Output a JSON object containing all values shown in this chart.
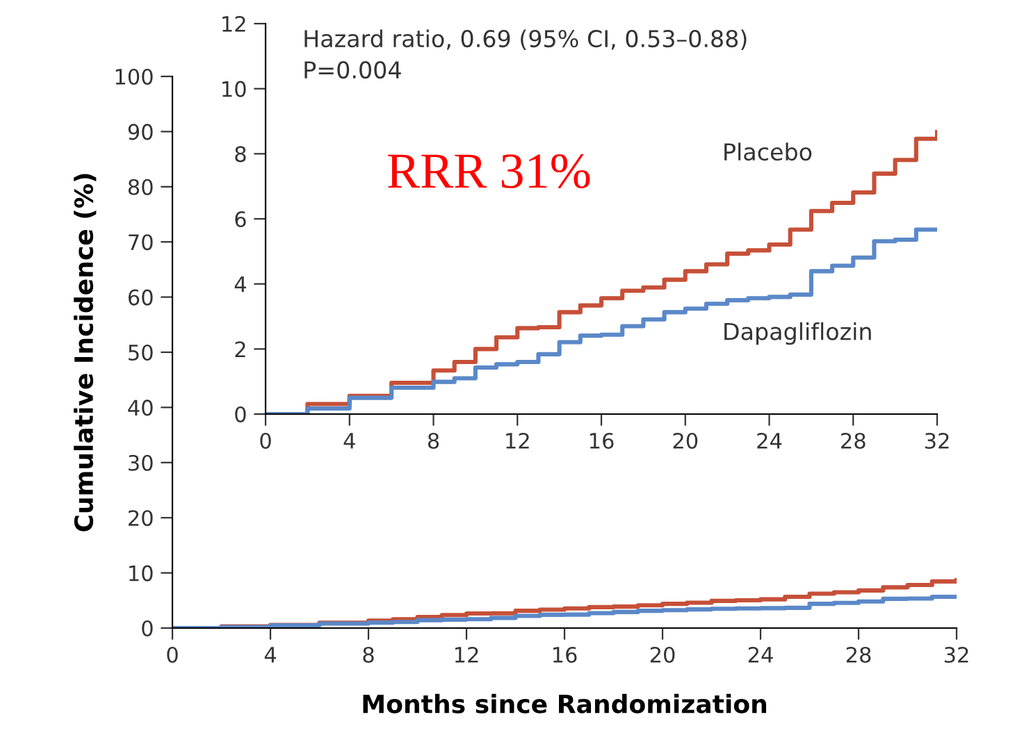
{
  "chart_data": [
    {
      "type": "step",
      "xlabel": "Months since Randomization",
      "ylabel": "Cumulative Incidence (%)",
      "xlim": [
        0,
        32
      ],
      "ylim": [
        0,
        100
      ],
      "xticks": [
        0,
        4,
        8,
        12,
        16,
        20,
        24,
        28,
        32
      ],
      "yticks": [
        0,
        10,
        20,
        30,
        40,
        50,
        60,
        70,
        80,
        90,
        100
      ],
      "grid": false,
      "legend": false,
      "x": [
        0,
        2,
        4,
        6,
        8,
        9,
        10,
        11,
        12,
        13,
        14,
        15,
        16,
        17,
        18,
        19,
        20,
        21,
        22,
        23,
        24,
        25,
        26,
        27,
        28,
        29,
        30,
        31,
        32
      ],
      "series": [
        {
          "color": "#c65038",
          "values": [
            0,
            0.31,
            0.56,
            0.96,
            1.34,
            1.6,
            2.0,
            2.36,
            2.64,
            2.67,
            3.13,
            3.34,
            3.56,
            3.79,
            3.89,
            4.13,
            4.39,
            4.6,
            4.93,
            5.03,
            5.21,
            5.67,
            6.24,
            6.49,
            6.81,
            7.39,
            7.81,
            8.46,
            8.67
          ]
        },
        {
          "color": "#5b88c8",
          "values": [
            0,
            0.17,
            0.5,
            0.81,
            0.99,
            1.1,
            1.43,
            1.53,
            1.6,
            1.84,
            2.21,
            2.41,
            2.44,
            2.7,
            2.91,
            3.13,
            3.24,
            3.39,
            3.5,
            3.56,
            3.6,
            3.67,
            4.39,
            4.56,
            4.81,
            5.31,
            5.36,
            5.67,
            5.67
          ]
        }
      ]
    },
    {
      "type": "step",
      "xlim": [
        0,
        32
      ],
      "ylim": [
        0,
        12
      ],
      "xticks": [
        0,
        4,
        8,
        12,
        16,
        20,
        24,
        28,
        32
      ],
      "yticks": [
        0,
        2,
        4,
        6,
        8,
        10,
        12
      ],
      "grid": false,
      "legend": false,
      "annotations": [
        "Hazard ratio, 0.69 (95% CI, 0.53–0.88)",
        "P=0.004",
        "RRR 31%"
      ],
      "x": [
        0,
        2,
        4,
        6,
        8,
        9,
        10,
        11,
        12,
        13,
        14,
        15,
        16,
        17,
        18,
        19,
        20,
        21,
        22,
        23,
        24,
        25,
        26,
        27,
        28,
        29,
        30,
        31,
        32
      ],
      "series": [
        {
          "name": "Placebo",
          "color": "#c65038",
          "values": [
            0,
            0.31,
            0.56,
            0.96,
            1.34,
            1.6,
            2.0,
            2.36,
            2.64,
            2.67,
            3.13,
            3.34,
            3.56,
            3.79,
            3.89,
            4.13,
            4.39,
            4.6,
            4.93,
            5.03,
            5.21,
            5.67,
            6.24,
            6.49,
            6.81,
            7.39,
            7.81,
            8.46,
            8.67
          ]
        },
        {
          "name": "Dapagliflozin",
          "color": "#5b88c8",
          "values": [
            0,
            0.17,
            0.5,
            0.81,
            0.99,
            1.1,
            1.43,
            1.53,
            1.6,
            1.84,
            2.21,
            2.41,
            2.44,
            2.7,
            2.91,
            3.13,
            3.24,
            3.39,
            3.5,
            3.56,
            3.6,
            3.67,
            4.39,
            4.56,
            4.81,
            5.31,
            5.36,
            5.67,
            5.67
          ]
        }
      ]
    }
  ]
}
